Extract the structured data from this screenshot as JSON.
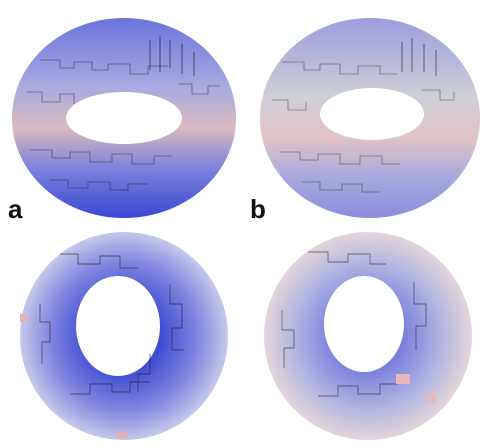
{
  "panels": [
    {
      "label": "a",
      "view": "side-perspective",
      "dominant_color": "#4a55d8"
    },
    {
      "label": "b",
      "view": "side-perspective",
      "dominant_color": "#8c8fd8"
    },
    {
      "label": "",
      "view": "top-down",
      "dominant_color": "#4a55d8"
    },
    {
      "label": "",
      "view": "top-down",
      "dominant_color": "#9da0dc"
    }
  ],
  "colors": {
    "blue": "#4450d6",
    "gray": "#c8c8d0",
    "pink": "#e9b4b4",
    "edge": "#222222"
  }
}
